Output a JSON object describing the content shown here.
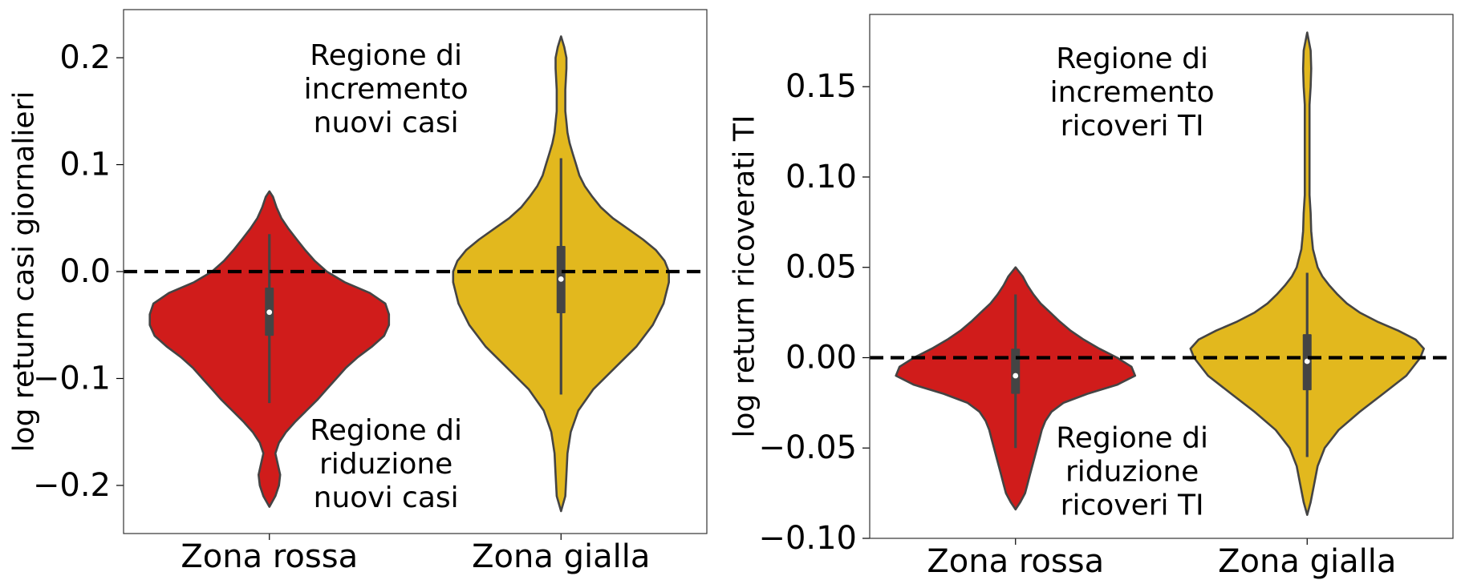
{
  "chart_data": [
    {
      "type": "violin",
      "ylabel": "log return casi giornalieri",
      "xlabel": "",
      "ylim": [
        -0.245,
        0.245
      ],
      "yticks": [
        {
          "v": 0.2,
          "label": "0.2"
        },
        {
          "v": 0.1,
          "label": "0.1"
        },
        {
          "v": 0.0,
          "label": "0.0"
        },
        {
          "v": -0.1,
          "label": "−0.1"
        },
        {
          "v": -0.2,
          "label": "−0.2"
        }
      ],
      "categories": [
        "Zona rossa",
        "Zona gialla"
      ],
      "reference_line": {
        "y": 0.0,
        "style": "dashed"
      },
      "annotations": [
        {
          "lines": [
            "Regione di",
            "incremento",
            "nuovi casi"
          ],
          "x": 0.45,
          "y": 0.171
        },
        {
          "lines": [
            "Regione di",
            "riduzione",
            "nuovi casi"
          ],
          "x": 0.45,
          "y": -0.18
        }
      ],
      "series": [
        {
          "name": "Zona rossa",
          "color": "#d01c1b",
          "density": [
            [
              -0.22,
              0.0
            ],
            [
              -0.21,
              0.05
            ],
            [
              -0.2,
              0.08
            ],
            [
              -0.19,
              0.09
            ],
            [
              -0.18,
              0.07
            ],
            [
              -0.17,
              0.05
            ],
            [
              -0.16,
              0.08
            ],
            [
              -0.15,
              0.14
            ],
            [
              -0.14,
              0.22
            ],
            [
              -0.13,
              0.31
            ],
            [
              -0.12,
              0.4
            ],
            [
              -0.11,
              0.48
            ],
            [
              -0.1,
              0.56
            ],
            [
              -0.09,
              0.64
            ],
            [
              -0.08,
              0.74
            ],
            [
              -0.07,
              0.86
            ],
            [
              -0.06,
              0.96
            ],
            [
              -0.05,
              1.0
            ],
            [
              -0.04,
              1.0
            ],
            [
              -0.03,
              0.97
            ],
            [
              -0.02,
              0.84
            ],
            [
              -0.01,
              0.63
            ],
            [
              0.0,
              0.48
            ],
            [
              0.01,
              0.38
            ],
            [
              0.02,
              0.3
            ],
            [
              0.03,
              0.23
            ],
            [
              0.04,
              0.16
            ],
            [
              0.05,
              0.1
            ],
            [
              0.06,
              0.06
            ],
            [
              0.07,
              0.03
            ],
            [
              0.075,
              0.0
            ]
          ],
          "halfwidth": 0.41,
          "q1": -0.06,
          "median": -0.038,
          "q3": -0.015,
          "whisker_low": -0.123,
          "whisker_high": 0.035
        },
        {
          "name": "Zona gialla",
          "color": "#e2b81e",
          "density": [
            [
              -0.224,
              0.0
            ],
            [
              -0.21,
              0.04
            ],
            [
              -0.19,
              0.05
            ],
            [
              -0.17,
              0.06
            ],
            [
              -0.15,
              0.09
            ],
            [
              -0.13,
              0.16
            ],
            [
              -0.11,
              0.3
            ],
            [
              -0.09,
              0.5
            ],
            [
              -0.07,
              0.7
            ],
            [
              -0.05,
              0.85
            ],
            [
              -0.03,
              0.95
            ],
            [
              -0.01,
              1.0
            ],
            [
              0.0,
              1.0
            ],
            [
              0.01,
              0.96
            ],
            [
              0.02,
              0.88
            ],
            [
              0.03,
              0.76
            ],
            [
              0.04,
              0.62
            ],
            [
              0.05,
              0.48
            ],
            [
              0.06,
              0.37
            ],
            [
              0.07,
              0.29
            ],
            [
              0.08,
              0.22
            ],
            [
              0.09,
              0.17
            ],
            [
              0.1,
              0.14
            ],
            [
              0.11,
              0.11
            ],
            [
              0.12,
              0.08
            ],
            [
              0.13,
              0.06
            ],
            [
              0.14,
              0.05
            ],
            [
              0.15,
              0.04
            ],
            [
              0.17,
              0.04
            ],
            [
              0.19,
              0.05
            ],
            [
              0.2,
              0.05
            ],
            [
              0.21,
              0.03
            ],
            [
              0.22,
              0.0
            ]
          ],
          "halfwidth": 0.37,
          "q1": -0.039,
          "median": -0.007,
          "q3": 0.024,
          "whisker_low": -0.115,
          "whisker_high": 0.106
        }
      ]
    },
    {
      "type": "violin",
      "ylabel": "log return ricoverati TI",
      "xlabel": "",
      "ylim": [
        -0.1,
        0.19
      ],
      "yticks": [
        {
          "v": 0.15,
          "label": "0.15"
        },
        {
          "v": 0.1,
          "label": "0.10"
        },
        {
          "v": 0.05,
          "label": "0.05"
        },
        {
          "v": 0.0,
          "label": "0.00"
        },
        {
          "v": -0.05,
          "label": "−0.05"
        },
        {
          "v": -0.1,
          "label": "−0.10"
        }
      ],
      "categories": [
        "Zona rossa",
        "Zona gialla"
      ],
      "reference_line": {
        "y": 0.0,
        "style": "dashed"
      },
      "annotations": [
        {
          "lines": [
            "Regione di",
            "incremento",
            "ricoveri TI"
          ],
          "x": 0.45,
          "y": 0.147
        },
        {
          "lines": [
            "Regione di",
            "riduzione",
            "ricoveri TI"
          ],
          "x": 0.45,
          "y": -0.063
        }
      ],
      "series": [
        {
          "name": "Zona rossa",
          "color": "#d01c1b",
          "density": [
            [
              -0.084,
              0.0
            ],
            [
              -0.08,
              0.04
            ],
            [
              -0.075,
              0.08
            ],
            [
              -0.07,
              0.1
            ],
            [
              -0.065,
              0.12
            ],
            [
              -0.06,
              0.14
            ],
            [
              -0.055,
              0.16
            ],
            [
              -0.05,
              0.18
            ],
            [
              -0.045,
              0.2
            ],
            [
              -0.04,
              0.22
            ],
            [
              -0.035,
              0.25
            ],
            [
              -0.03,
              0.3
            ],
            [
              -0.025,
              0.4
            ],
            [
              -0.02,
              0.6
            ],
            [
              -0.015,
              0.85
            ],
            [
              -0.01,
              1.0
            ],
            [
              -0.005,
              0.97
            ],
            [
              0.0,
              0.85
            ],
            [
              0.005,
              0.7
            ],
            [
              0.01,
              0.57
            ],
            [
              0.015,
              0.46
            ],
            [
              0.02,
              0.37
            ],
            [
              0.025,
              0.29
            ],
            [
              0.03,
              0.21
            ],
            [
              0.035,
              0.15
            ],
            [
              0.04,
              0.1
            ],
            [
              0.045,
              0.06
            ],
            [
              0.05,
              0.0
            ]
          ],
          "halfwidth": 0.41,
          "q1": -0.02,
          "median": -0.01,
          "q3": 0.005,
          "whisker_low": -0.05,
          "whisker_high": 0.035
        },
        {
          "name": "Zona gialla",
          "color": "#e2b81e",
          "density": [
            [
              -0.087,
              0.0
            ],
            [
              -0.08,
              0.03
            ],
            [
              -0.07,
              0.06
            ],
            [
              -0.06,
              0.09
            ],
            [
              -0.05,
              0.15
            ],
            [
              -0.04,
              0.27
            ],
            [
              -0.03,
              0.45
            ],
            [
              -0.02,
              0.65
            ],
            [
              -0.01,
              0.85
            ],
            [
              0.0,
              0.97
            ],
            [
              0.005,
              1.0
            ],
            [
              0.01,
              0.93
            ],
            [
              0.015,
              0.78
            ],
            [
              0.02,
              0.6
            ],
            [
              0.025,
              0.45
            ],
            [
              0.03,
              0.34
            ],
            [
              0.035,
              0.26
            ],
            [
              0.04,
              0.19
            ],
            [
              0.045,
              0.13
            ],
            [
              0.05,
              0.09
            ],
            [
              0.06,
              0.05
            ],
            [
              0.07,
              0.035
            ],
            [
              0.08,
              0.03
            ],
            [
              0.09,
              0.02
            ],
            [
              0.1,
              0.02
            ],
            [
              0.11,
              0.02
            ],
            [
              0.12,
              0.02
            ],
            [
              0.13,
              0.02
            ],
            [
              0.14,
              0.02
            ],
            [
              0.15,
              0.03
            ],
            [
              0.16,
              0.035
            ],
            [
              0.17,
              0.03
            ],
            [
              0.18,
              0.0
            ]
          ],
          "halfwidth": 0.4,
          "q1": -0.018,
          "median": -0.002,
          "q3": 0.013,
          "whisker_low": -0.055,
          "whisker_high": 0.047
        }
      ]
    }
  ]
}
